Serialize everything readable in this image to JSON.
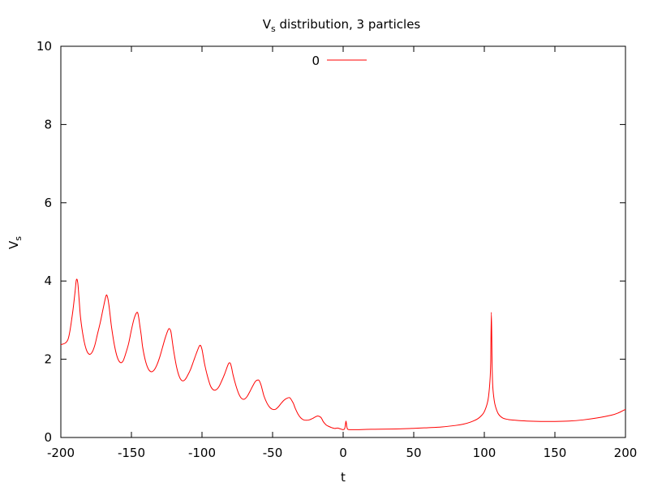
{
  "chart_data": {
    "type": "line",
    "title": "V_s distribution, 3 particles",
    "title_main": "V",
    "title_sub": "s",
    "title_rest": " distribution, 3 particles",
    "xlabel": "t",
    "ylabel": "V_s",
    "ylabel_main": "V",
    "ylabel_sub": "s",
    "xlim": [
      -200,
      200
    ],
    "ylim": [
      0,
      10
    ],
    "xticks": [
      -200,
      -150,
      -100,
      -50,
      0,
      50,
      100,
      150,
      200
    ],
    "yticks": [
      0,
      2,
      4,
      6,
      8,
      10
    ],
    "grid": false,
    "legend_position": "top-center",
    "series": [
      {
        "name": "0",
        "color": "#ff0000",
        "x": [
          -200,
          -195,
          -192,
          -190,
          -189,
          -188,
          -187,
          -186,
          -184,
          -182,
          -180,
          -178,
          -176,
          -174,
          -172,
          -170,
          -168,
          -167,
          -166,
          -165,
          -164,
          -162,
          -160,
          -158,
          -156,
          -154,
          -152,
          -150,
          -148,
          -146,
          -145,
          -144,
          -143,
          -142,
          -140,
          -138,
          -136,
          -134,
          -132,
          -130,
          -128,
          -126,
          -124,
          -123,
          -122,
          -121,
          -120,
          -118,
          -116,
          -114,
          -112,
          -110,
          -108,
          -106,
          -104,
          -102,
          -101,
          -100,
          -99,
          -98,
          -96,
          -94,
          -92,
          -90,
          -88,
          -86,
          -84,
          -82,
          -81,
          -80,
          -79,
          -78,
          -76,
          -74,
          -72,
          -70,
          -68,
          -66,
          -64,
          -62,
          -60,
          -59,
          -58,
          -57,
          -56,
          -54,
          -52,
          -50,
          -48,
          -46,
          -44,
          -42,
          -40,
          -38,
          -37,
          -36,
          -35,
          -34,
          -32,
          -30,
          -28,
          -26,
          -24,
          -22,
          -20,
          -18,
          -16,
          -15,
          -14,
          -12,
          -10,
          -8,
          -6,
          -4,
          -2,
          0,
          1,
          1.5,
          2,
          2.5,
          3,
          4,
          6,
          10,
          20,
          40,
          60,
          70,
          80,
          85,
          90,
          95,
          98,
          100,
          102,
          103,
          104,
          104.5,
          105,
          105.5,
          106,
          107,
          108,
          110,
          113,
          117,
          122,
          130,
          140,
          150,
          160,
          170,
          180,
          190,
          195,
          200
        ],
        "y": [
          2.37,
          2.5,
          3.1,
          3.7,
          4.03,
          3.95,
          3.5,
          3.05,
          2.55,
          2.25,
          2.13,
          2.17,
          2.35,
          2.65,
          2.95,
          3.3,
          3.62,
          3.6,
          3.4,
          3.1,
          2.8,
          2.35,
          2.05,
          1.92,
          1.95,
          2.15,
          2.4,
          2.75,
          3.05,
          3.2,
          3.1,
          2.85,
          2.6,
          2.3,
          1.95,
          1.75,
          1.68,
          1.72,
          1.85,
          2.05,
          2.3,
          2.55,
          2.75,
          2.78,
          2.7,
          2.45,
          2.2,
          1.8,
          1.55,
          1.45,
          1.48,
          1.6,
          1.75,
          1.95,
          2.15,
          2.33,
          2.35,
          2.25,
          2.05,
          1.85,
          1.55,
          1.32,
          1.22,
          1.22,
          1.3,
          1.45,
          1.62,
          1.82,
          1.9,
          1.9,
          1.78,
          1.6,
          1.33,
          1.12,
          1.0,
          0.98,
          1.05,
          1.18,
          1.32,
          1.44,
          1.47,
          1.42,
          1.32,
          1.18,
          1.05,
          0.88,
          0.77,
          0.72,
          0.72,
          0.78,
          0.87,
          0.95,
          1.0,
          1.02,
          0.98,
          0.92,
          0.85,
          0.75,
          0.6,
          0.5,
          0.45,
          0.44,
          0.45,
          0.48,
          0.52,
          0.55,
          0.52,
          0.47,
          0.4,
          0.32,
          0.28,
          0.25,
          0.23,
          0.24,
          0.22,
          0.2,
          0.22,
          0.3,
          0.42,
          0.3,
          0.22,
          0.2,
          0.2,
          0.2,
          0.21,
          0.22,
          0.25,
          0.27,
          0.31,
          0.34,
          0.39,
          0.47,
          0.56,
          0.66,
          0.86,
          1.05,
          1.45,
          1.9,
          3.2,
          1.9,
          1.3,
          0.95,
          0.78,
          0.6,
          0.5,
          0.46,
          0.44,
          0.42,
          0.41,
          0.41,
          0.42,
          0.45,
          0.5,
          0.57,
          0.63,
          0.72
        ]
      }
    ]
  }
}
